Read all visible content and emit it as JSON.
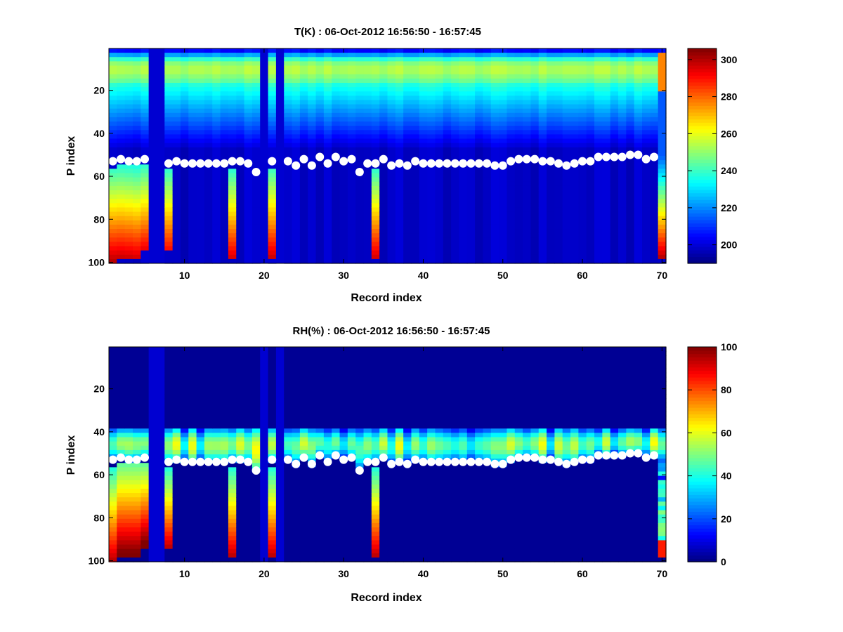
{
  "chart_data": [
    {
      "type": "heatmap",
      "title": "T(K) : 06-Oct-2012 16:56:50 - 16:57:45",
      "xlabel": "Record index",
      "ylabel": "P index",
      "xlim": [
        0.5,
        70.5
      ],
      "ylim": [
        0.5,
        100.5
      ],
      "y_reversed": true,
      "x_ticks": [
        "10",
        "20",
        "30",
        "40",
        "50",
        "60",
        "70"
      ],
      "y_ticks": [
        "20",
        "40",
        "60",
        "80",
        "100"
      ],
      "colormap": "jet",
      "clim": [
        190,
        306
      ],
      "colorbar_ticks": [
        "200",
        "220",
        "240",
        "260",
        "280",
        "300"
      ],
      "colorbar_values": [
        200,
        220,
        240,
        260,
        280,
        300
      ],
      "missing_records": [
        6,
        7,
        20,
        22
      ],
      "surface_markers": [
        {
          "x": 1,
          "y": 53
        },
        {
          "x": 2,
          "y": 52
        },
        {
          "x": 3,
          "y": 53
        },
        {
          "x": 4,
          "y": 53
        },
        {
          "x": 5,
          "y": 52
        },
        {
          "x": 8,
          "y": 54
        },
        {
          "x": 9,
          "y": 53
        },
        {
          "x": 10,
          "y": 54
        },
        {
          "x": 11,
          "y": 54
        },
        {
          "x": 12,
          "y": 54
        },
        {
          "x": 13,
          "y": 54
        },
        {
          "x": 14,
          "y": 54
        },
        {
          "x": 15,
          "y": 54
        },
        {
          "x": 16,
          "y": 53
        },
        {
          "x": 17,
          "y": 53
        },
        {
          "x": 18,
          "y": 54
        },
        {
          "x": 19,
          "y": 58
        },
        {
          "x": 21,
          "y": 53
        },
        {
          "x": 23,
          "y": 53
        },
        {
          "x": 24,
          "y": 55
        },
        {
          "x": 25,
          "y": 52
        },
        {
          "x": 26,
          "y": 55
        },
        {
          "x": 27,
          "y": 51
        },
        {
          "x": 28,
          "y": 54
        },
        {
          "x": 29,
          "y": 51
        },
        {
          "x": 30,
          "y": 53
        },
        {
          "x": 31,
          "y": 52
        },
        {
          "x": 32,
          "y": 58
        },
        {
          "x": 33,
          "y": 54
        },
        {
          "x": 34,
          "y": 54
        },
        {
          "x": 35,
          "y": 52
        },
        {
          "x": 36,
          "y": 55
        },
        {
          "x": 37,
          "y": 54
        },
        {
          "x": 38,
          "y": 55
        },
        {
          "x": 39,
          "y": 53
        },
        {
          "x": 40,
          "y": 54
        },
        {
          "x": 41,
          "y": 54
        },
        {
          "x": 42,
          "y": 54
        },
        {
          "x": 43,
          "y": 54
        },
        {
          "x": 44,
          "y": 54
        },
        {
          "x": 45,
          "y": 54
        },
        {
          "x": 46,
          "y": 54
        },
        {
          "x": 47,
          "y": 54
        },
        {
          "x": 48,
          "y": 54
        },
        {
          "x": 49,
          "y": 55
        },
        {
          "x": 50,
          "y": 55
        },
        {
          "x": 51,
          "y": 53
        },
        {
          "x": 52,
          "y": 52
        },
        {
          "x": 53,
          "y": 52
        },
        {
          "x": 54,
          "y": 52
        },
        {
          "x": 55,
          "y": 53
        },
        {
          "x": 56,
          "y": 53
        },
        {
          "x": 57,
          "y": 54
        },
        {
          "x": 58,
          "y": 55
        },
        {
          "x": 59,
          "y": 54
        },
        {
          "x": 60,
          "y": 53
        },
        {
          "x": 61,
          "y": 53
        },
        {
          "x": 62,
          "y": 51
        },
        {
          "x": 63,
          "y": 51
        },
        {
          "x": 64,
          "y": 51
        },
        {
          "x": 65,
          "y": 51
        },
        {
          "x": 66,
          "y": 50
        },
        {
          "x": 67,
          "y": 50
        },
        {
          "x": 68,
          "y": 52
        },
        {
          "x": 69,
          "y": 51
        }
      ],
      "warm_columns": [
        {
          "x": 1,
          "from": 56,
          "to": 100
        },
        {
          "x": 2,
          "from": 55,
          "to": 98
        },
        {
          "x": 3,
          "from": 55,
          "to": 98
        },
        {
          "x": 4,
          "from": 55,
          "to": 98
        },
        {
          "x": 5,
          "from": 55,
          "to": 93
        },
        {
          "x": 8,
          "from": 56,
          "to": 94
        },
        {
          "x": 16,
          "from": 56,
          "to": 98
        },
        {
          "x": 21,
          "from": 56,
          "to": 98
        },
        {
          "x": 34,
          "from": 56,
          "to": 98
        },
        {
          "x": 70,
          "from": 2,
          "to": 98
        }
      ]
    },
    {
      "type": "heatmap",
      "title": "RH(%) : 06-Oct-2012 16:56:50 - 16:57:45",
      "xlabel": "Record index",
      "ylabel": "P index",
      "xlim": [
        0.5,
        70.5
      ],
      "ylim": [
        0.5,
        100.5
      ],
      "y_reversed": true,
      "x_ticks": [
        "10",
        "20",
        "30",
        "40",
        "50",
        "60",
        "70"
      ],
      "y_ticks": [
        "20",
        "40",
        "60",
        "80",
        "100"
      ],
      "colormap": "jet",
      "clim": [
        0,
        100
      ],
      "colorbar_ticks": [
        "0",
        "20",
        "40",
        "60",
        "80",
        "100"
      ],
      "colorbar_values": [
        0,
        20,
        40,
        60,
        80,
        100
      ],
      "missing_records": [
        6,
        7,
        20,
        22
      ],
      "surface_markers": "same as T(K) panel",
      "moist_columns": [
        {
          "x": 1,
          "from": 56,
          "to": 100
        },
        {
          "x": 2,
          "from": 55,
          "to": 98
        },
        {
          "x": 3,
          "from": 55,
          "to": 98
        },
        {
          "x": 4,
          "from": 55,
          "to": 98
        },
        {
          "x": 5,
          "from": 55,
          "to": 93
        },
        {
          "x": 8,
          "from": 56,
          "to": 94
        },
        {
          "x": 16,
          "from": 56,
          "to": 98
        },
        {
          "x": 21,
          "from": 56,
          "to": 98
        },
        {
          "x": 34,
          "from": 56,
          "to": 98
        },
        {
          "x": 70,
          "from": 53,
          "to": 98
        }
      ]
    }
  ]
}
